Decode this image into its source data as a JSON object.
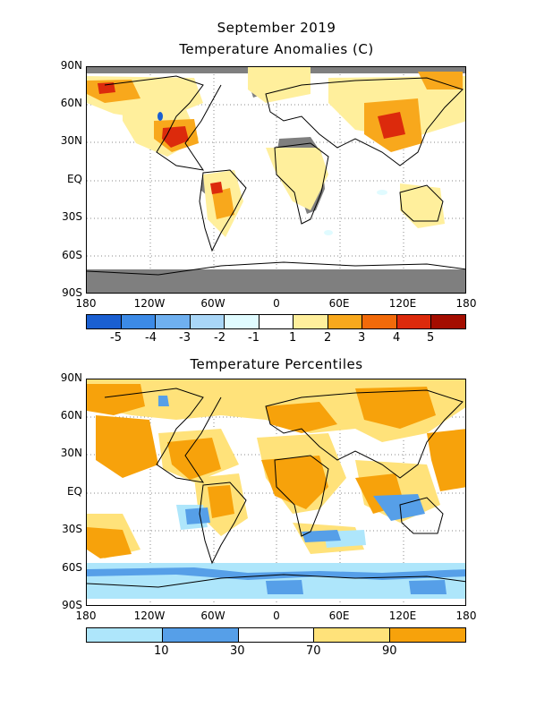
{
  "figure": {
    "title_line1": "September 2019",
    "title_line2": "Temperature Anomalies (C)",
    "title_percentiles": "Temperature Percentiles"
  },
  "lat_labels": [
    "90N",
    "60N",
    "30N",
    "EQ",
    "30S",
    "60S",
    "90S"
  ],
  "lon_labels": [
    "180",
    "120W",
    "60W",
    "0",
    "60E",
    "120E",
    "180"
  ],
  "anomaly_colorbar": {
    "colors": [
      "#1a5fd1",
      "#3c8ae6",
      "#6fb0f0",
      "#a9d6f7",
      "#e0fbff",
      "#ffffff",
      "#ffef9c",
      "#f8a81c",
      "#f26a0a",
      "#dc2a0c",
      "#a40d00"
    ],
    "labels": [
      "-5",
      "-4",
      "-3",
      "-2",
      "-1",
      "1",
      "2",
      "3",
      "4",
      "5"
    ]
  },
  "percentile_colorbar": {
    "colors": [
      "#aee6fb",
      "#569fe8",
      "#ffffff",
      "#ffe27a",
      "#f7a20b"
    ],
    "labels": [
      "10",
      "30",
      "70",
      "90"
    ]
  },
  "colors": {
    "missing": "#7f7f7f",
    "orange": "#f7a20b",
    "yellow": "#ffe27a",
    "red": "#dc2a0c",
    "light_blue": "#aee6fb",
    "blue": "#569fe8"
  }
}
